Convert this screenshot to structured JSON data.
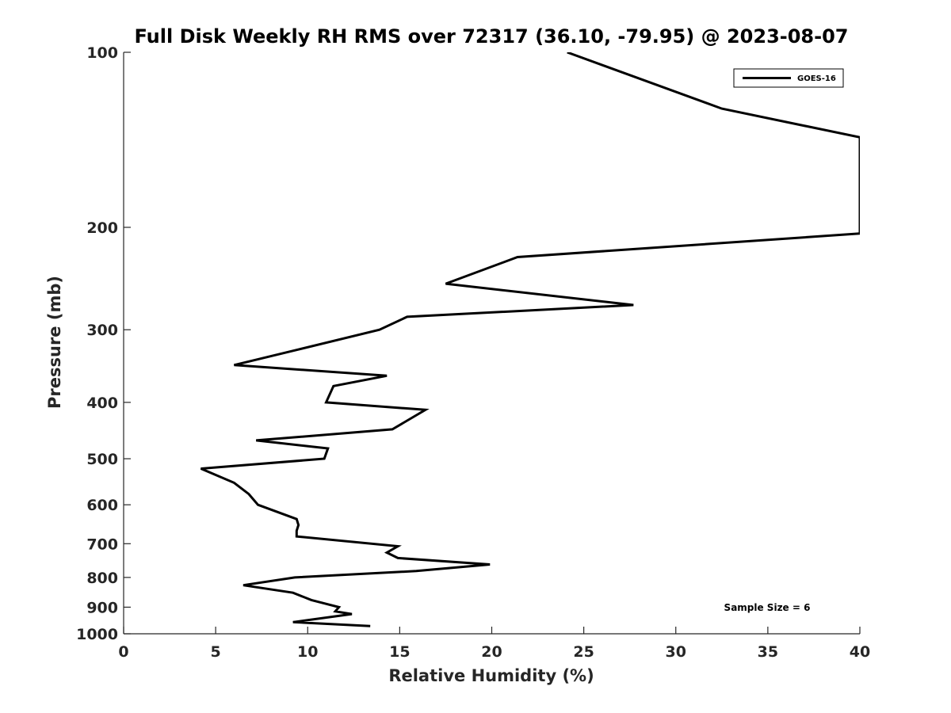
{
  "chart_data": {
    "type": "line",
    "title": "Full Disk Weekly RH RMS over 72317 (36.10, -79.95) @ 2023-08-07",
    "xlabel": "Relative Humidity (%)",
    "ylabel": "Pressure (mb)",
    "xlim": [
      0,
      40
    ],
    "ylim": [
      1000,
      100
    ],
    "y_scale": "log",
    "x_ticks": [
      0,
      5,
      10,
      15,
      20,
      25,
      30,
      35,
      40
    ],
    "y_ticks": [
      100,
      200,
      300,
      400,
      500,
      600,
      700,
      800,
      900,
      1000
    ],
    "grid": false,
    "legend_position": "top-right",
    "annotation": "Sample Size = 6",
    "series": [
      {
        "name": "GOES-16",
        "color": "#000000",
        "points": [
          [
            24.1,
            100
          ],
          [
            32.5,
            125
          ],
          [
            40.0,
            140
          ],
          [
            40.0,
            205
          ],
          [
            21.4,
            225
          ],
          [
            17.5,
            250
          ],
          [
            27.7,
            272
          ],
          [
            15.4,
            285
          ],
          [
            13.9,
            300
          ],
          [
            9.4,
            325
          ],
          [
            6.0,
            345
          ],
          [
            14.3,
            360
          ],
          [
            11.4,
            375
          ],
          [
            11.0,
            400
          ],
          [
            16.4,
            412
          ],
          [
            14.6,
            445
          ],
          [
            7.2,
            465
          ],
          [
            11.1,
            480
          ],
          [
            10.9,
            500
          ],
          [
            4.2,
            520
          ],
          [
            6.0,
            550
          ],
          [
            6.8,
            575
          ],
          [
            7.3,
            600
          ],
          [
            9.4,
            635
          ],
          [
            9.5,
            650
          ],
          [
            9.4,
            665
          ],
          [
            9.4,
            680
          ],
          [
            14.9,
            707
          ],
          [
            14.3,
            725
          ],
          [
            14.9,
            741
          ],
          [
            19.9,
            760
          ],
          [
            15.9,
            780
          ],
          [
            9.3,
            800
          ],
          [
            6.5,
            825
          ],
          [
            9.2,
            850
          ],
          [
            10.2,
            875
          ],
          [
            11.7,
            900
          ],
          [
            11.5,
            915
          ],
          [
            12.4,
            925
          ],
          [
            9.2,
            955
          ],
          [
            13.4,
            970
          ]
        ]
      }
    ]
  }
}
